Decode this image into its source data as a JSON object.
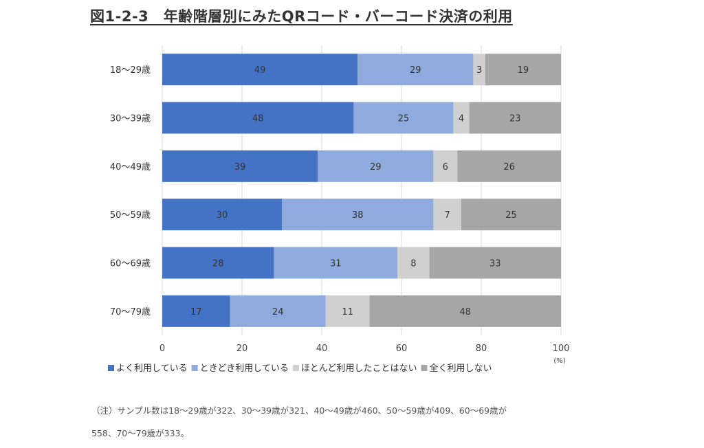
{
  "chart_data": {
    "type": "bar",
    "orientation": "horizontal",
    "stacked": true,
    "title": "図1-2-3　年齢階層別にみたQRコード・バーコード決済の利用",
    "categories": [
      "18〜29歳",
      "30〜39歳",
      "40〜49歳",
      "50〜59歳",
      "60〜69歳",
      "70〜79歳"
    ],
    "series": [
      {
        "name": "よく利用している",
        "color": "#4472C4",
        "values": [
          49,
          48,
          39,
          30,
          28,
          17
        ]
      },
      {
        "name": "ときどき利用している",
        "color": "#8FAADC",
        "values": [
          29,
          25,
          29,
          38,
          31,
          24
        ]
      },
      {
        "name": "ほとんど利用したことはない",
        "color": "#D0D0D0",
        "values": [
          3,
          4,
          6,
          7,
          8,
          11
        ]
      },
      {
        "name": "全く利用しない",
        "color": "#A6A6A6",
        "values": [
          19,
          23,
          26,
          25,
          33,
          48
        ]
      }
    ],
    "xlim": [
      0,
      100
    ],
    "xticks": [
      "0",
      "20",
      "40",
      "60",
      "80",
      "100"
    ],
    "xunit": "(%)",
    "grid": true,
    "legend_position": "bottom"
  },
  "notes": {
    "line1": "（注）サンプル数は18〜29歳が322、30〜39歳が321、40〜49歳が460、50〜59歳が409、60〜69歳が",
    "line2": "558、70〜79歳が333。"
  }
}
